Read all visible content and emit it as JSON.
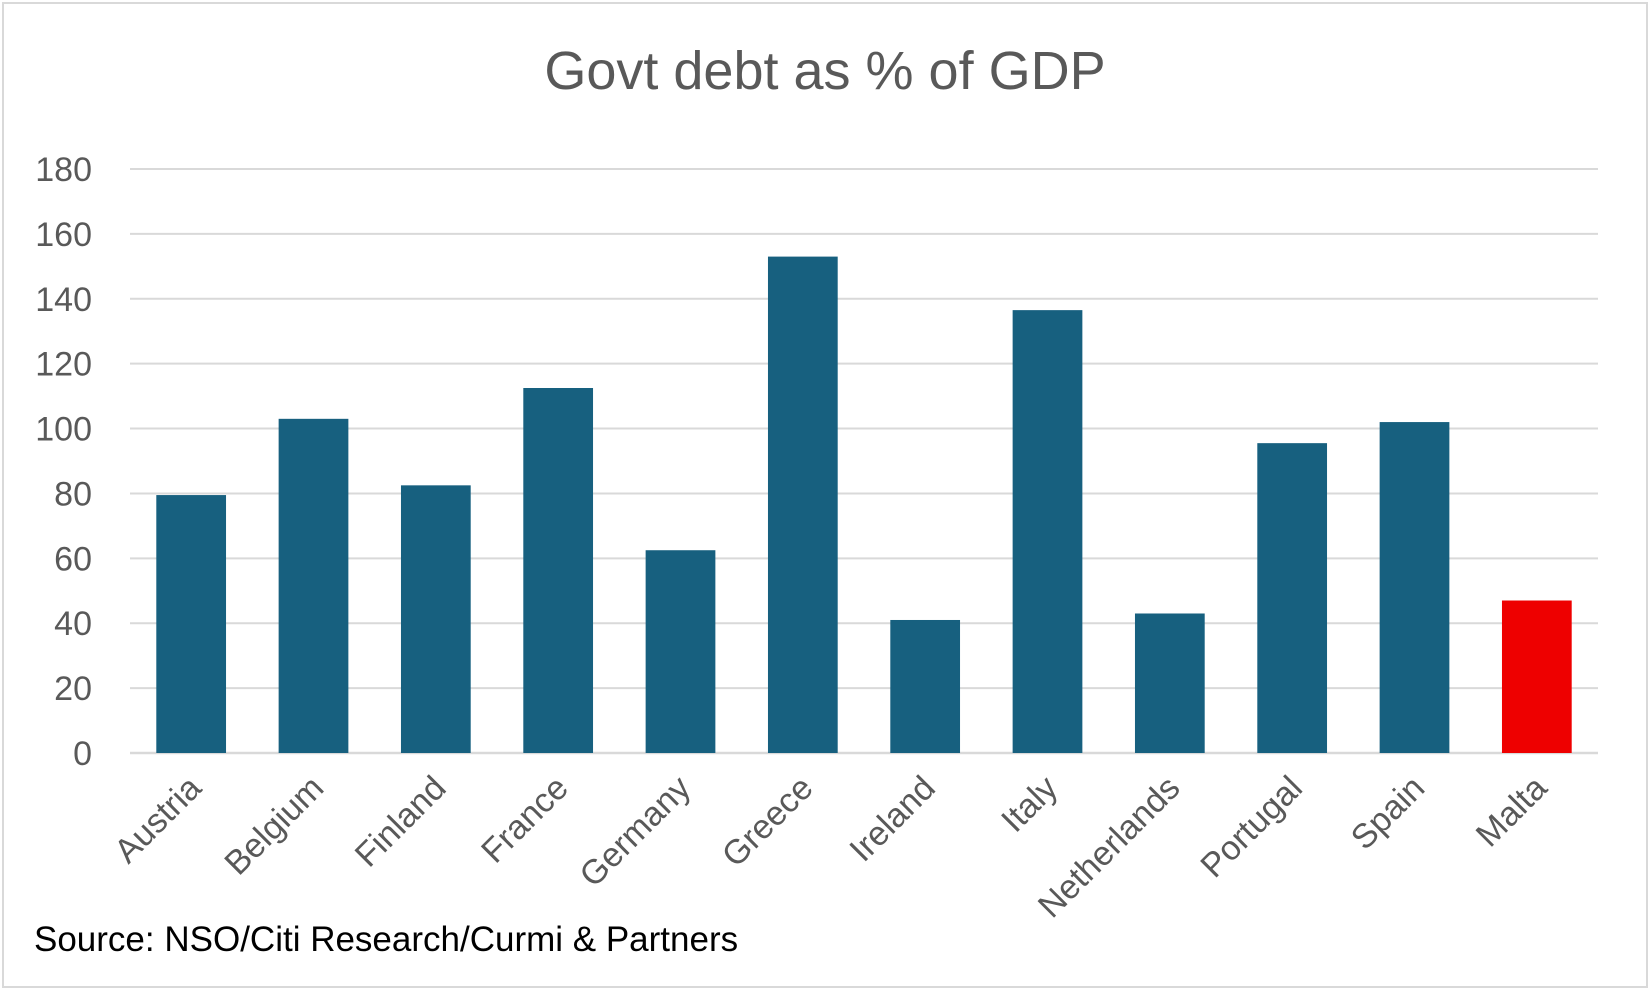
{
  "chart_data": {
    "type": "bar",
    "title": "Govt debt as % of GDP",
    "xlabel": "",
    "ylabel": "",
    "ylim": [
      0,
      180
    ],
    "yticks": [
      0,
      20,
      40,
      60,
      80,
      100,
      120,
      140,
      160,
      180
    ],
    "grid": true,
    "legend": "none",
    "categories": [
      "Austria",
      "Belgium",
      "Finland",
      "France",
      "Germany",
      "Greece",
      "Ireland",
      "Italy",
      "Netherlands",
      "Portugal",
      "Spain",
      "Malta"
    ],
    "values": [
      79.5,
      103,
      82.5,
      112.5,
      62.5,
      153,
      41,
      136.5,
      43,
      95.5,
      102,
      47
    ],
    "colors": {
      "default": "#17607f",
      "highlight": "#ee0000",
      "highlight_category": "Malta",
      "grid": "#d9d9d9",
      "text": "#595959"
    }
  },
  "source": "Source: NSO/Citi Research/Curmi & Partners"
}
